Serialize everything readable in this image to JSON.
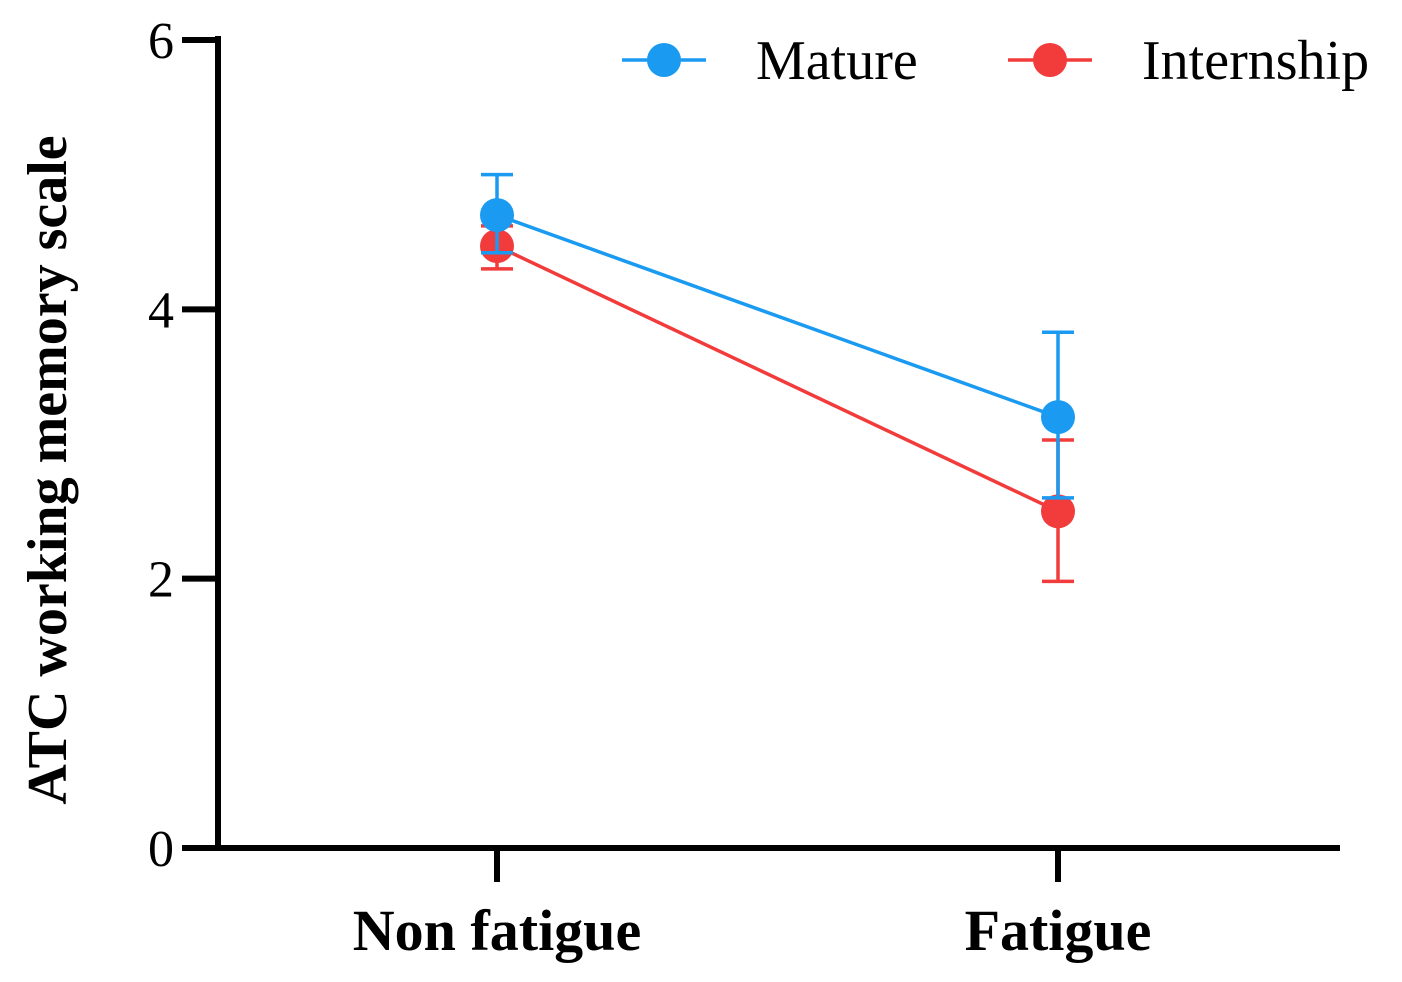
{
  "chart_data": {
    "type": "line",
    "title": "",
    "xlabel": "",
    "ylabel": "ATC working memory scale",
    "categories": [
      "Non fatigue",
      "Fatigue"
    ],
    "ylim": [
      0,
      6
    ],
    "yticks": [
      0,
      2,
      4,
      6
    ],
    "grid": false,
    "legend_position": "top-right",
    "error_bars": true,
    "series": [
      {
        "name": "Mature",
        "color": "#1a9af0",
        "values": [
          4.7,
          3.2
        ],
        "error_upper": [
          5.0,
          3.83
        ],
        "error_lower": [
          4.42,
          2.6
        ]
      },
      {
        "name": "Internship",
        "color": "#f23c3c",
        "values": [
          4.47,
          2.5
        ],
        "error_upper": [
          4.62,
          3.03
        ],
        "error_lower": [
          4.3,
          1.98
        ]
      }
    ]
  }
}
